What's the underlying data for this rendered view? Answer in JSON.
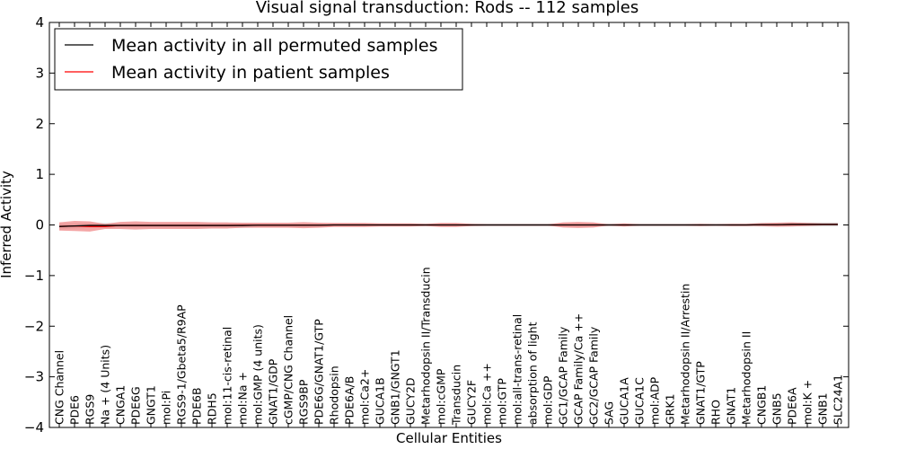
{
  "chart_data": {
    "type": "line",
    "title": "Visual signal transduction: Rods -- 112 samples",
    "xlabel": "Cellular Entities",
    "ylabel": "Inferred Activity",
    "ylim": [
      -4,
      4
    ],
    "yticks": [
      -4,
      -3,
      -2,
      -1,
      0,
      1,
      2,
      3,
      4
    ],
    "grid": false,
    "legend_position": "top-left",
    "categories": [
      "CNG Channel",
      "PDE6",
      "RGS9",
      "Na + (4 Units)",
      "CNGA1",
      "PDE6G",
      "GNGT1",
      "mol:Pi",
      "RGS9-1/Gbeta5/R9AP",
      "PDE6B",
      "RDH5",
      "mol:11-cis-retinal",
      "mol:Na +",
      "mol:GMP (4 units)",
      "GNAT1/GDP",
      "cGMP/CNG Channel",
      "RGS9BP",
      "PDE6G/GNAT1/GTP",
      "Rhodopsin",
      "PDE6A/B",
      "mol:Ca2+",
      "GUCA1B",
      "GNB1/GNGT1",
      "GUCY2D",
      "Metarhodopsin II/Transducin",
      "mol:cGMP",
      "Transducin",
      "GUCY2F",
      "mol:Ca ++",
      "mol:GTP",
      "mol:all-trans-retinal",
      "absorption of light",
      "mol:GDP",
      "GC1/GCAP Family",
      "GCAP Family/Ca ++",
      "GC2/GCAP Family",
      "SAG",
      "GUCA1A",
      "GUCA1C",
      "mol:ADP",
      "GRK1",
      "Metarhodopsin II/Arrestin",
      "GNAT1/GTP",
      "RHO",
      "GNAT1",
      "Metarhodopsin II",
      "CNGB1",
      "GNB5",
      "PDE6A",
      "mol:K +",
      "GNB1",
      "SLC24A1"
    ],
    "series": [
      {
        "name": "Mean activity in all permuted samples",
        "color": "#000000",
        "band_color": "#bbbbbb",
        "values": [
          -0.03,
          -0.02,
          -0.01,
          -0.01,
          -0.01,
          -0.01,
          -0.01,
          -0.01,
          -0.01,
          -0.01,
          -0.01,
          -0.01,
          -0.01,
          -0.005,
          -0.005,
          -0.005,
          -0.005,
          -0.005,
          0,
          0,
          0,
          0,
          0,
          0,
          0,
          0,
          0,
          0,
          0,
          0,
          0,
          0,
          0,
          0,
          0,
          0,
          0,
          0,
          0,
          0,
          0,
          0,
          0,
          0,
          0,
          0,
          0.005,
          0.005,
          0.01,
          0.01,
          0.01,
          0.01
        ],
        "band": [
          0.06,
          0.05,
          0.05,
          0.05,
          0.05,
          0.05,
          0.05,
          0.05,
          0.05,
          0.05,
          0.05,
          0.05,
          0.05,
          0.04,
          0.04,
          0.04,
          0.04,
          0.04,
          0.03,
          0.03,
          0.03,
          0.03,
          0.03,
          0.03,
          0.03,
          0.03,
          0.03,
          0.03,
          0.03,
          0.03,
          0.03,
          0.03,
          0.03,
          0.03,
          0.03,
          0.03,
          0.03,
          0.03,
          0.03,
          0.03,
          0.03,
          0.03,
          0.03,
          0.03,
          0.03,
          0.03,
          0.04,
          0.04,
          0.04,
          0.04,
          0.04,
          0.04
        ]
      },
      {
        "name": "Mean activity in patient samples",
        "color": "#ff0000",
        "band_color": "#f08080",
        "values": [
          -0.03,
          -0.02,
          -0.03,
          -0.03,
          -0.01,
          -0.01,
          -0.01,
          -0.01,
          -0.01,
          -0.01,
          -0.01,
          -0.01,
          -0.005,
          -0.005,
          -0.005,
          -0.005,
          -0.005,
          -0.005,
          0,
          0,
          0,
          0,
          0,
          0,
          0,
          0,
          0,
          0,
          0,
          0,
          0,
          0,
          0,
          0,
          0,
          0,
          0,
          0,
          0,
          0,
          0,
          0,
          0,
          0,
          0,
          0,
          0.005,
          0.005,
          0.01,
          0.01,
          0.01,
          0.01
        ],
        "band": [
          0.08,
          0.1,
          0.1,
          0.05,
          0.07,
          0.08,
          0.07,
          0.07,
          0.07,
          0.07,
          0.06,
          0.06,
          0.05,
          0.05,
          0.05,
          0.05,
          0.06,
          0.05,
          0.04,
          0.04,
          0.04,
          0.03,
          0.03,
          0.03,
          0.02,
          0.04,
          0.04,
          0.02,
          0.01,
          0.01,
          0.01,
          0.01,
          0.01,
          0.05,
          0.06,
          0.05,
          0.01,
          0.03,
          0.01,
          0.01,
          0.01,
          0.01,
          0.02,
          0.01,
          0.02,
          0.02,
          0.03,
          0.04,
          0.04,
          0.03,
          0.02,
          0.02
        ]
      }
    ]
  }
}
